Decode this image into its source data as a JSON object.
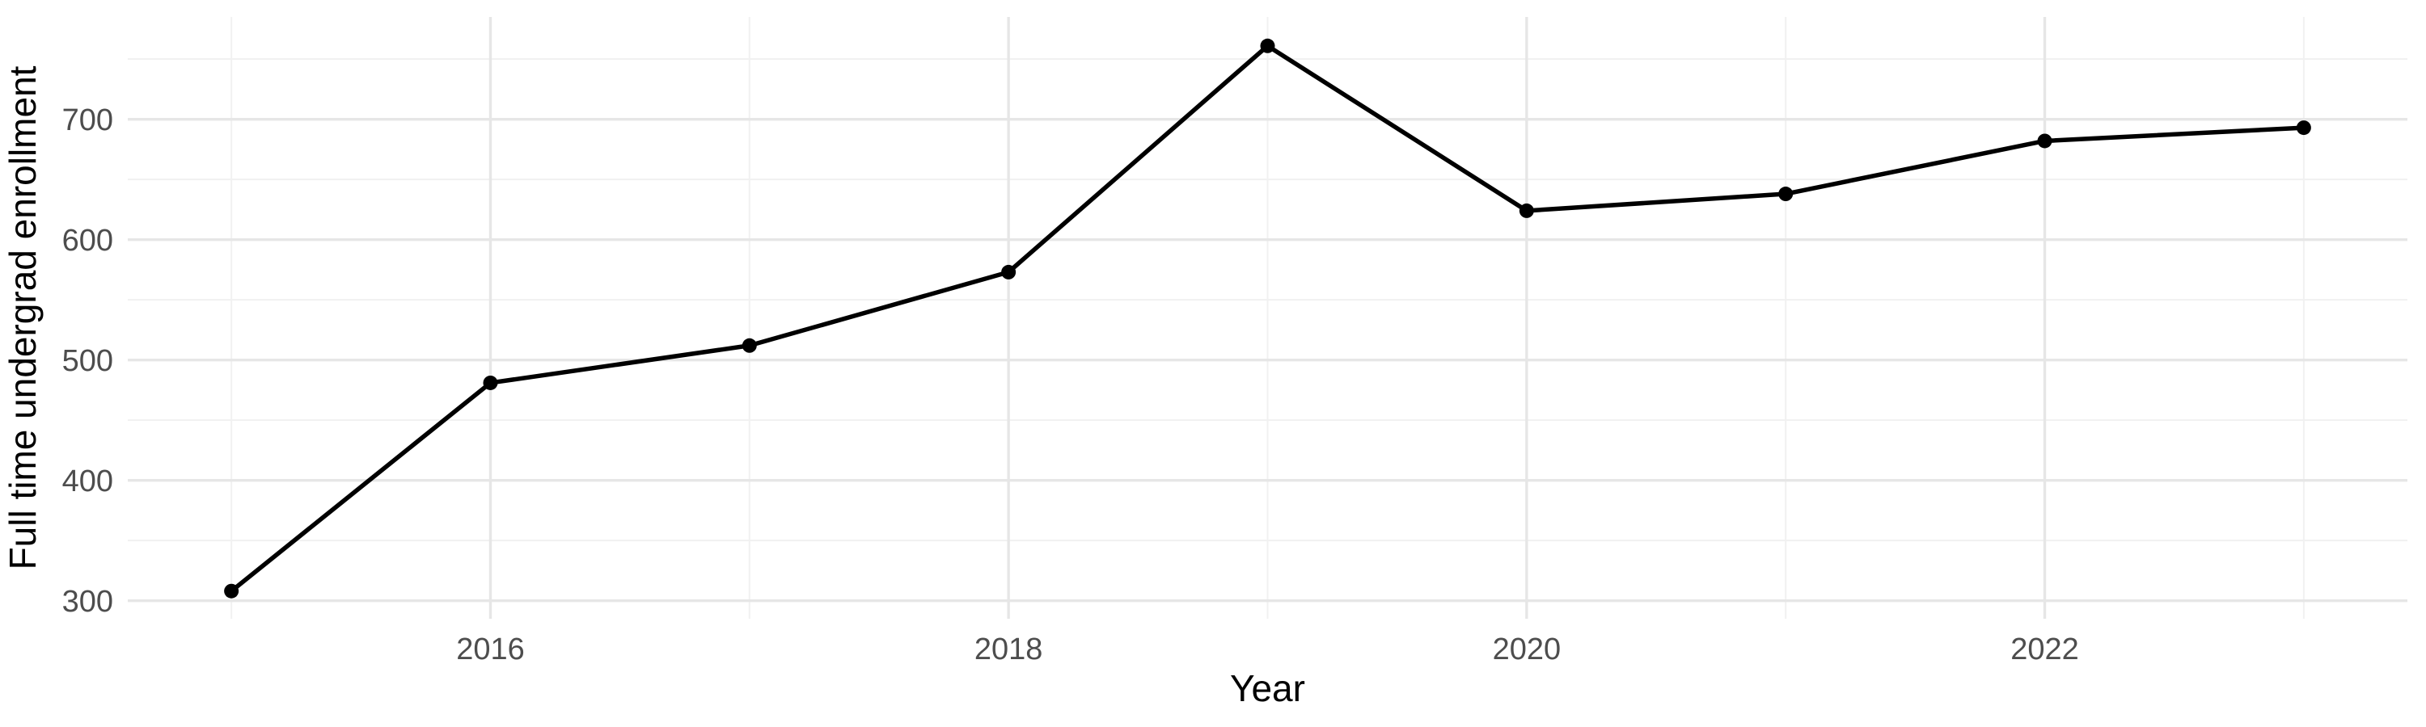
{
  "chart_data": {
    "type": "line",
    "title": "",
    "xlabel": "Year",
    "ylabel": "Full time undergrad enrollment",
    "series": [
      {
        "name": "Full time undergrad enrollment",
        "x": [
          2015,
          2016,
          2017,
          2018,
          2019,
          2020,
          2021,
          2022,
          2023
        ],
        "values": [
          308,
          481,
          512,
          573,
          761,
          624,
          638,
          682,
          693
        ]
      }
    ],
    "x_tick_labels": [
      "2016",
      "2018",
      "2020",
      "2022"
    ],
    "x_major_gridlines": [
      2016,
      2018,
      2020,
      2022
    ],
    "x_minor_gridlines": [
      2015,
      2017,
      2019,
      2021,
      2023
    ],
    "y_tick_labels": [
      "300",
      "400",
      "500",
      "600",
      "700"
    ],
    "y_major_gridlines": [
      300,
      400,
      500,
      600,
      700
    ],
    "y_minor_gridlines": [
      350,
      450,
      550,
      650,
      750
    ],
    "xlim": [
      2014.6,
      2023.4
    ],
    "ylim": [
      285,
      785
    ],
    "grid": "on",
    "legend": "none",
    "colors": {
      "line": "#000000",
      "point": "#000000",
      "major_grid": "#e6e6e6",
      "minor_grid": "#f1f1f1",
      "tick_label": "#4d4d4d",
      "axis_title": "#000000",
      "background": "#ffffff"
    }
  }
}
